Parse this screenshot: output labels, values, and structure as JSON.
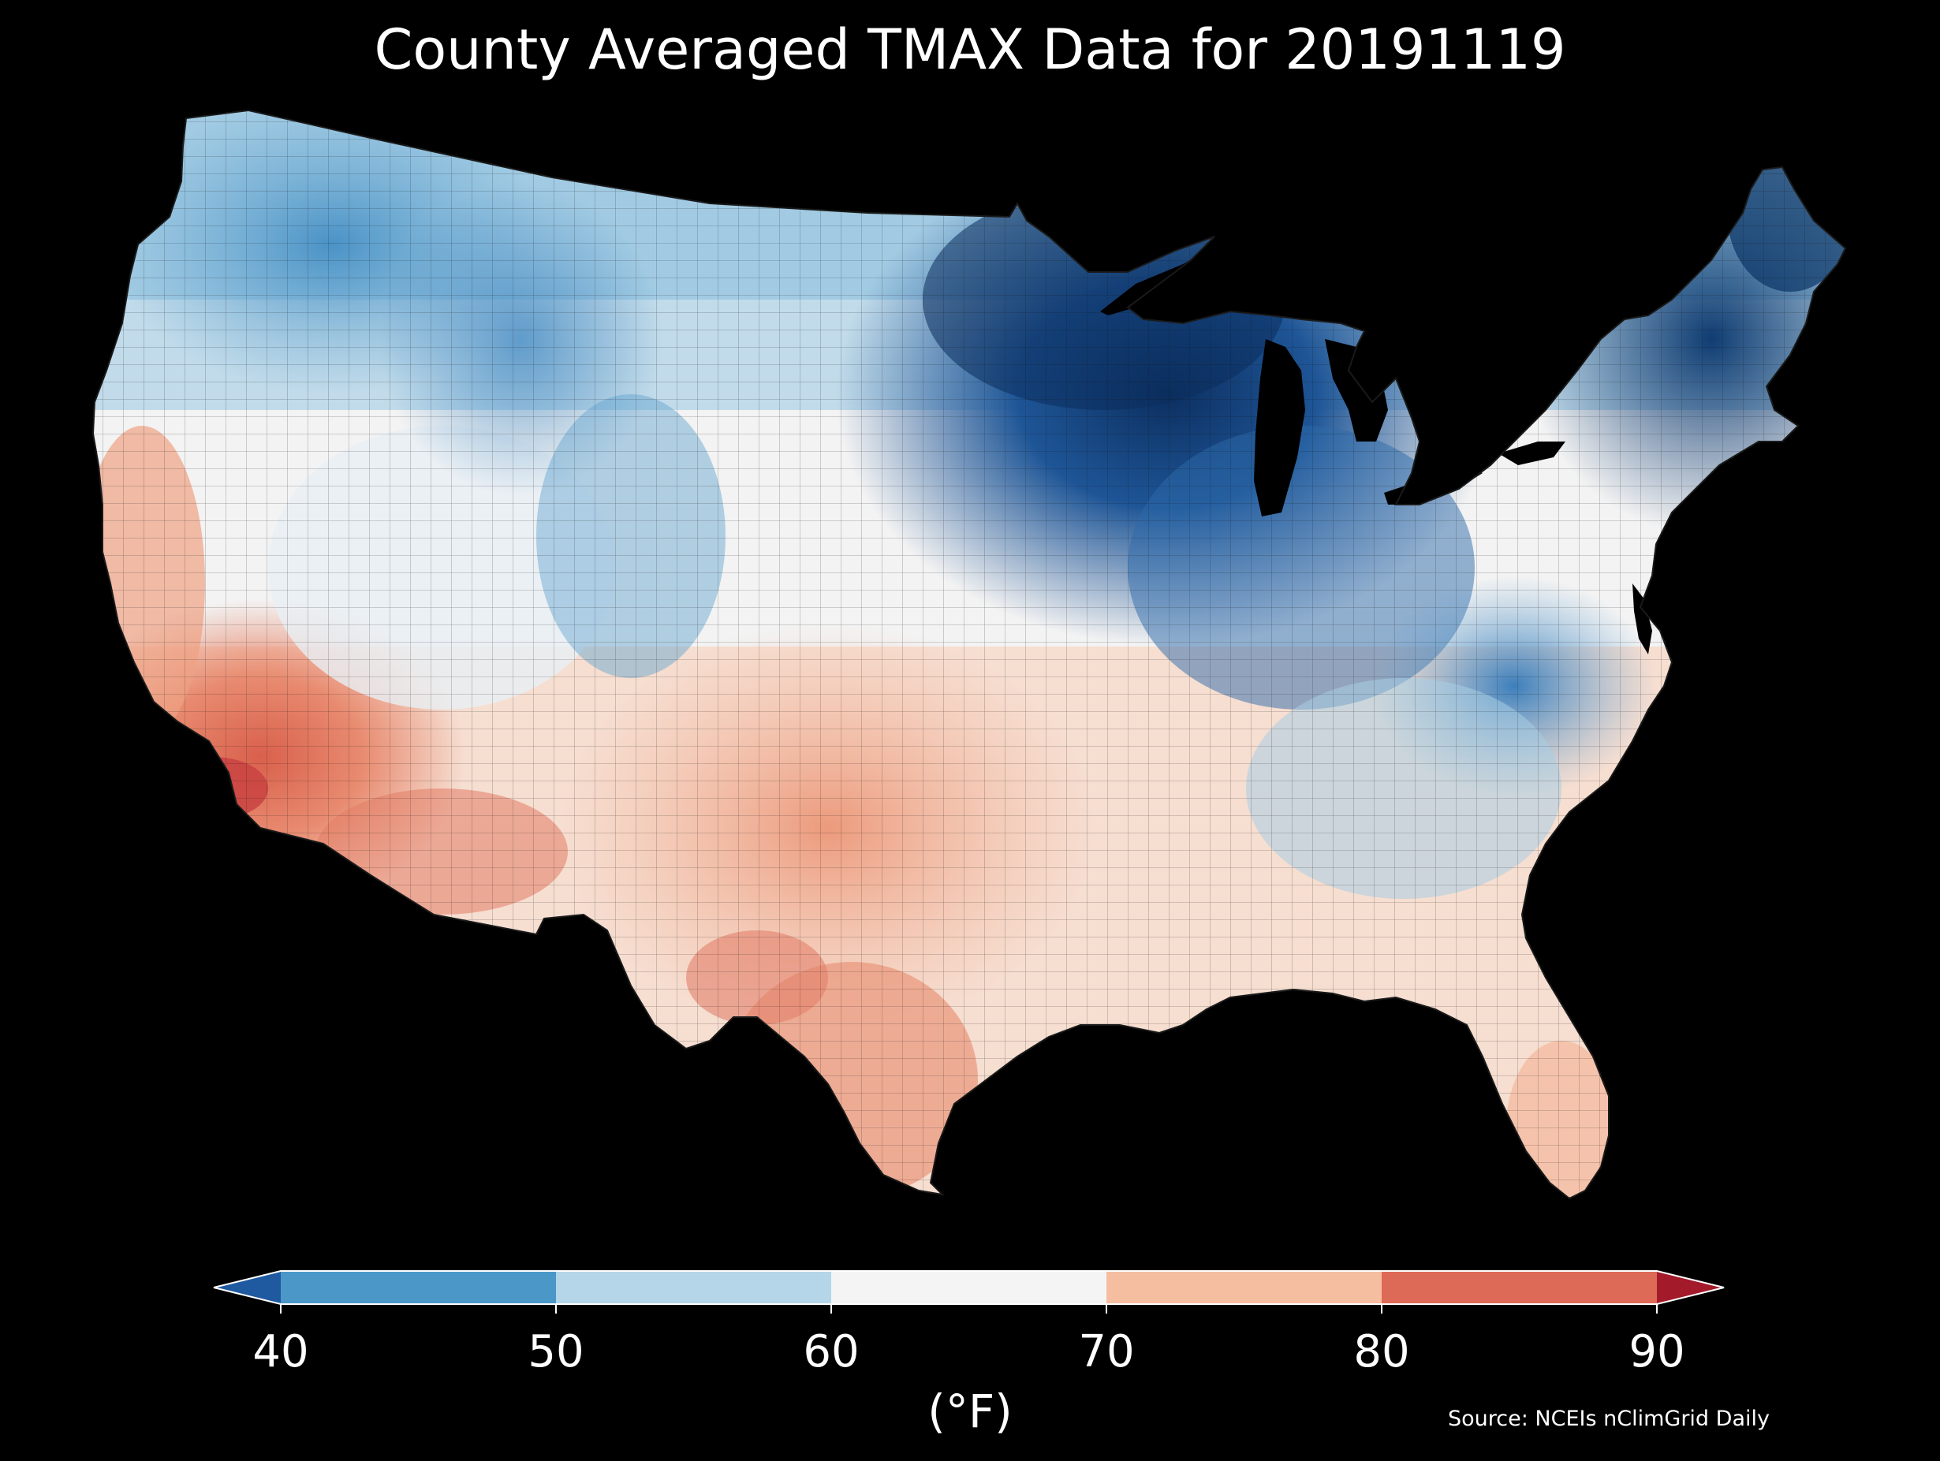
{
  "title": "County Averaged TMAX Data for 20191119",
  "colorbar": {
    "label": "(°F)",
    "ticks": [
      "40",
      "50",
      "60",
      "70",
      "80",
      "90"
    ],
    "bins": [
      {
        "range": "<40",
        "color": "#1f5aa0"
      },
      {
        "range": "40-50",
        "color": "#4b98c8"
      },
      {
        "range": "50-60",
        "color": "#b4d6e8"
      },
      {
        "range": "60-70",
        "color": "#f4f4f4"
      },
      {
        "range": "70-80",
        "color": "#f5bea1"
      },
      {
        "range": "80-90",
        "color": "#dc6a56"
      },
      {
        "range": ">90",
        "color": "#a31a2a"
      }
    ]
  },
  "source": "Source: NCEIs nClimGrid Daily",
  "map": {
    "region": "contiguous-united-states",
    "variable": "TMAX",
    "date": "20191119",
    "regional_pattern": [
      {
        "region": "Upper Midwest / Great Lakes",
        "range": "<40-45"
      },
      {
        "region": "New England",
        "range": "40-50"
      },
      {
        "region": "Northern Rockies / Northwest",
        "range": "45-60"
      },
      {
        "region": "Great Basin / Central Plains",
        "range": "55-70"
      },
      {
        "region": "Southern Plains / Texas",
        "range": "70-80"
      },
      {
        "region": "Southern California / Arizona",
        "range": "75-88"
      },
      {
        "region": "Southeast / Florida",
        "range": "65-75"
      }
    ],
    "colors": {
      "background": "#000000",
      "land_outline": "#222222"
    }
  }
}
